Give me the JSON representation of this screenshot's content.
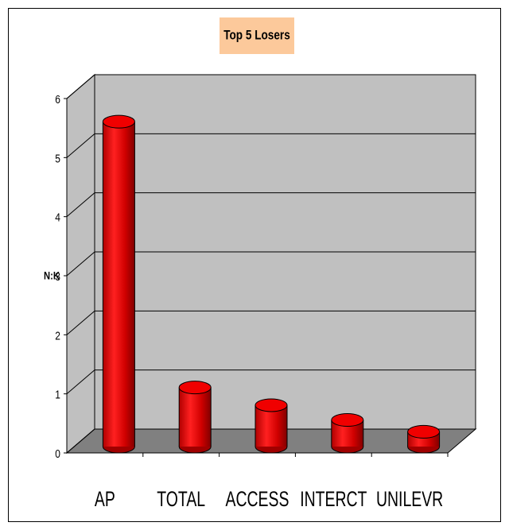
{
  "chart_data": {
    "type": "bar3d",
    "title": "Top 5 Losers",
    "y_label": "N:K",
    "categories": [
      "AP",
      "TOTAL",
      "ACCESS",
      "INTERCT",
      "UNILEVR"
    ],
    "values": [
      5.5,
      1.0,
      0.7,
      0.45,
      0.25
    ],
    "color": "#e00000",
    "ylim": [
      0,
      6
    ],
    "yticks": [
      0,
      1,
      2,
      3,
      4,
      5,
      6
    ],
    "grid": true
  }
}
